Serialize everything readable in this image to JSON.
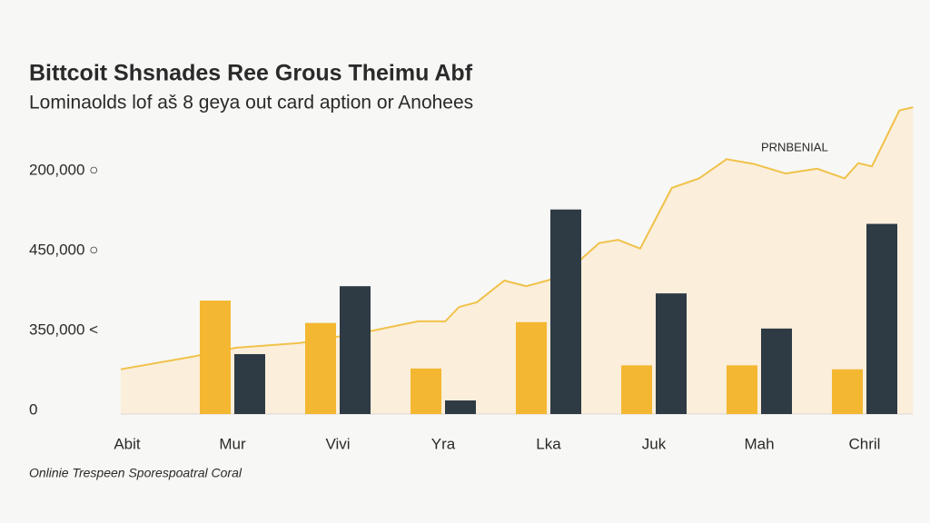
{
  "chart_data": {
    "type": "bar",
    "title": "Bittcoit Shsnades Ree Grous Theimu Abf",
    "subtitle": "Lominaolds lof aš 8 geya out card aption or Anohees",
    "y_labels": [
      "200,000 ○",
      "450,000 ○",
      "350,000 <",
      "0"
    ],
    "categories": [
      "Abit",
      "Mur",
      "Vivi",
      "Yra",
      "Lka",
      "Juk",
      "Mah",
      "Chril"
    ],
    "ylim": [
      0,
      390000
    ],
    "series": [
      {
        "color": "#f4b731",
        "values": [
          null,
          142000,
          114000,
          57000,
          115000,
          61000,
          61000,
          56000
        ]
      },
      {
        "color": "#2e3a44",
        "values": [
          null,
          75000,
          160000,
          17000,
          256000,
          151000,
          107000,
          238000
        ]
      }
    ],
    "area": {
      "color": "#f0c24a",
      "fill": "#fbeedb",
      "xlim": [
        -0.5,
        7.5
      ],
      "x": [
        -0.06,
        0.63,
        1.03,
        1.64,
        2.28,
        2.76,
        3.02,
        3.15,
        3.32,
        3.58,
        3.79,
        4.01,
        4.31,
        4.48,
        4.66,
        4.87,
        5.17,
        5.43,
        5.69,
        5.95,
        6.25,
        6.55,
        6.81,
        6.94,
        7.07,
        7.33,
        7.46
      ],
      "values": [
        56000,
        72000,
        83000,
        89000,
        103000,
        116000,
        116000,
        134000,
        140000,
        167000,
        160000,
        168000,
        194000,
        214000,
        218000,
        207000,
        283000,
        295000,
        319000,
        313000,
        301000,
        307000,
        295000,
        314000,
        310000,
        380000,
        384000
      ]
    },
    "annotation": "PRNBENIAL",
    "footer": "Onlinie Trespeen Sporespoatral Coral"
  }
}
